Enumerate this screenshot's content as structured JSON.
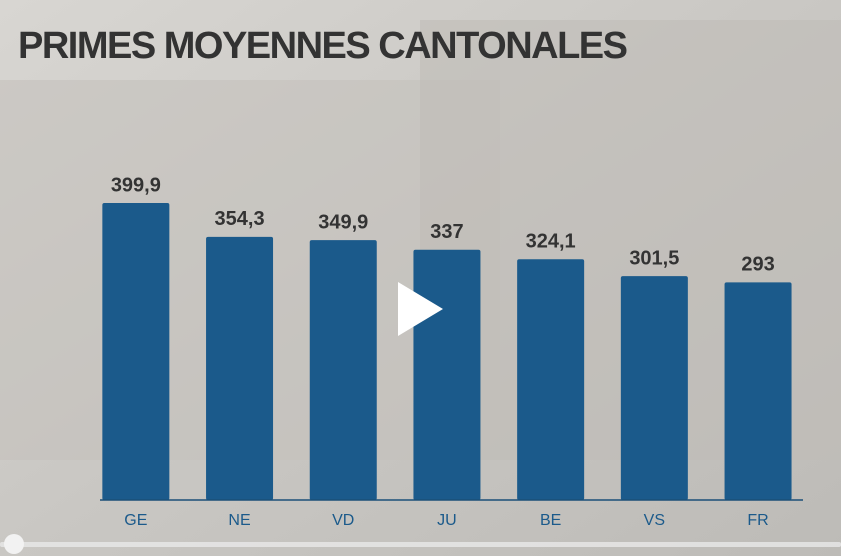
{
  "chart_data": {
    "type": "bar",
    "title": "PRIMES MOYENNES CANTONALES",
    "categories": [
      "GE",
      "NE",
      "VD",
      "JU",
      "BE",
      "VS",
      "FR"
    ],
    "values": [
      399.9,
      354.3,
      349.9,
      337,
      324.1,
      301.5,
      293
    ],
    "value_labels": [
      "399,9",
      "354,3",
      "349,9",
      "337",
      "324,1",
      "301,5",
      "293"
    ],
    "color": "#1b5a8b"
  }
}
